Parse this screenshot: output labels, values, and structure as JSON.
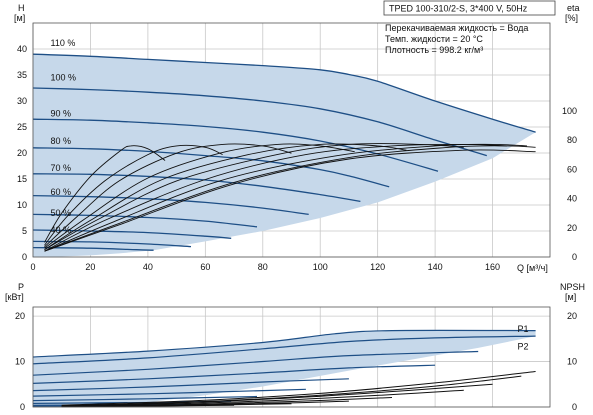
{
  "header": {
    "title": "TPED 100-310/2-S, 3*400 V, 50Hz",
    "info": [
      "Перекачиваемая жидкость = Вода",
      "Темп. жидкости = 20 °C",
      "Плотность = 998.2 кг/м³"
    ]
  },
  "colors": {
    "area": "#c6d8ea",
    "curve": "#1e4f86",
    "eta": "#111111",
    "grid": "#c8c8c8"
  },
  "chart_data": [
    {
      "type": "line",
      "name": "QH",
      "xlabel": "Q [м³/ч]",
      "ylabel_top": "H",
      "ylabel_unit": "[м]",
      "y2label_top": "eta",
      "y2label_unit": "[%]",
      "xlim": [
        0,
        180
      ],
      "ylim": [
        0,
        45
      ],
      "y2lim": [
        0,
        160
      ],
      "x_ticks": [
        0,
        20,
        40,
        60,
        80,
        100,
        120,
        140,
        160
      ],
      "y_ticks": [
        0,
        5,
        10,
        15,
        20,
        25,
        30,
        35,
        40
      ],
      "y2_ticks": [
        0,
        20,
        40,
        60,
        80,
        100
      ],
      "grid": true,
      "series": [
        {
          "name": "110 %",
          "label_pos": [
            4,
            41.2
          ],
          "x": [
            0,
            20,
            40,
            60,
            80,
            100,
            110,
            120,
            140,
            160,
            175
          ],
          "y": [
            39,
            38.6,
            38.0,
            37.4,
            36.8,
            36.0,
            35.1,
            33.8,
            30.0,
            26.5,
            24.0
          ]
        },
        {
          "name": "100 %",
          "label_pos": [
            4,
            34.5
          ],
          "x": [
            0,
            20,
            40,
            60,
            80,
            100,
            120,
            140,
            158
          ],
          "y": [
            32.5,
            32.2,
            31.7,
            31.0,
            30.0,
            28.5,
            26.0,
            22.5,
            19.5
          ]
        },
        {
          "name": "90 %",
          "label_pos": [
            4,
            27.6
          ],
          "x": [
            0,
            20,
            40,
            60,
            80,
            100,
            120,
            141
          ],
          "y": [
            26.5,
            26.3,
            25.8,
            25.1,
            24.0,
            22.3,
            19.8,
            16.5
          ]
        },
        {
          "name": "80 %",
          "label_pos": [
            4,
            22.3
          ],
          "x": [
            0,
            20,
            40,
            60,
            80,
            100,
            110,
            124
          ],
          "y": [
            21.0,
            20.8,
            20.3,
            19.5,
            18.5,
            16.8,
            15.6,
            13.5
          ]
        },
        {
          "name": "70 %",
          "label_pos": [
            4,
            17.1
          ],
          "x": [
            0,
            20,
            40,
            60,
            80,
            100,
            114
          ],
          "y": [
            16.0,
            15.9,
            15.5,
            14.8,
            13.6,
            12.0,
            10.7
          ]
        },
        {
          "name": "60 %",
          "label_pos": [
            4,
            12.5
          ],
          "x": [
            0,
            20,
            40,
            60,
            80,
            96
          ],
          "y": [
            11.8,
            11.6,
            11.2,
            10.5,
            9.4,
            8.2
          ]
        },
        {
          "name": "50 %",
          "label_pos": [
            4,
            8.5
          ],
          "x": [
            0,
            20,
            40,
            60,
            78
          ],
          "y": [
            8.2,
            8.0,
            7.6,
            6.9,
            5.8
          ]
        },
        {
          "name": "40 %",
          "label_pos": [
            4,
            5.2
          ],
          "x": [
            0,
            20,
            40,
            60,
            69
          ],
          "y": [
            5.2,
            5.0,
            4.7,
            4.0,
            3.6
          ]
        },
        {
          "name": "",
          "label_pos": null,
          "x": [
            0,
            20,
            40,
            55
          ],
          "y": [
            3.0,
            2.9,
            2.5,
            2.0
          ]
        },
        {
          "name": "",
          "label_pos": null,
          "x": [
            0,
            20,
            36,
            42
          ],
          "y": [
            1.8,
            1.7,
            1.4,
            1.3
          ]
        }
      ],
      "area_outline": {
        "x": [
          0,
          20,
          40,
          60,
          80,
          100,
          110,
          120,
          140,
          160,
          175,
          160,
          140,
          120,
          100,
          80,
          60,
          42,
          30,
          20,
          10,
          0
        ],
        "y": [
          39,
          38.6,
          38.0,
          37.4,
          36.8,
          36.0,
          35.1,
          33.8,
          30.0,
          26.5,
          24.0,
          19.0,
          14.5,
          10.5,
          7.5,
          5.0,
          3.0,
          1.3,
          0.7,
          0.3,
          0.1,
          0
        ]
      },
      "eta_series": [
        {
          "x": [
            4,
            10,
            20,
            30,
            34,
            40,
            46
          ],
          "y": [
            10,
            30,
            55,
            72,
            76,
            74,
            66
          ]
        },
        {
          "x": [
            4,
            12,
            25,
            40,
            50,
            60,
            66
          ],
          "y": [
            8,
            28,
            52,
            70,
            76,
            75,
            70
          ]
        },
        {
          "x": [
            4,
            15,
            30,
            50,
            66,
            80,
            90
          ],
          "y": [
            7,
            27,
            52,
            71,
            77,
            76,
            71
          ]
        },
        {
          "x": [
            4,
            18,
            40,
            65,
            85,
            100,
            112
          ],
          "y": [
            6,
            26,
            54,
            71,
            77,
            76,
            72
          ]
        },
        {
          "x": [
            4,
            20,
            45,
            75,
            100,
            120,
            130
          ],
          "y": [
            5,
            25,
            53,
            70,
            77,
            76,
            73
          ]
        },
        {
          "x": [
            4,
            22,
            50,
            85,
            110,
            135,
            150
          ],
          "y": [
            5,
            25,
            52,
            70,
            77,
            77,
            75
          ]
        },
        {
          "x": [
            4,
            25,
            60,
            95,
            125,
            150,
            165
          ],
          "y": [
            4,
            25,
            53,
            70,
            76,
            77,
            76
          ]
        },
        {
          "x": [
            4,
            28,
            65,
            105,
            140,
            160,
            172
          ],
          "y": [
            4,
            24,
            52,
            69,
            76,
            77,
            76
          ]
        },
        {
          "x": [
            4,
            30,
            70,
            110,
            145,
            165,
            175
          ],
          "y": [
            4,
            23,
            51,
            68,
            75,
            76,
            75
          ]
        },
        {
          "x": [
            4,
            30,
            70,
            110,
            150,
            175
          ],
          "y": [
            4,
            22,
            50,
            67,
            73,
            72
          ]
        }
      ]
    },
    {
      "type": "line",
      "name": "Power/NPSH",
      "ylabel_top": "P",
      "ylabel_unit": "[кВт]",
      "y2label_top": "NPSH",
      "y2label_unit": "[м]",
      "xlim": [
        0,
        180
      ],
      "ylim": [
        0,
        22
      ],
      "y2lim": [
        0,
        22
      ],
      "y_ticks": [
        0,
        10,
        20
      ],
      "y2_ticks": [
        0,
        10,
        20
      ],
      "grid": true,
      "labels": [
        {
          "text": "P1",
          "x": 168,
          "y": 17.2
        },
        {
          "text": "P2",
          "x": 168,
          "y": 13.3
        }
      ],
      "power_series": [
        {
          "x": [
            0,
            40,
            80,
            105,
            125,
            175
          ],
          "y": [
            11.0,
            12.3,
            14.2,
            16.1,
            16.8,
            16.8
          ]
        },
        {
          "x": [
            0,
            40,
            80,
            110,
            140,
            175
          ],
          "y": [
            9.5,
            10.8,
            12.8,
            14.4,
            15.2,
            15.6
          ]
        },
        {
          "x": [
            0,
            40,
            80,
            110,
            155
          ],
          "y": [
            7.0,
            8.3,
            10.0,
            11.3,
            12.2
          ]
        },
        {
          "x": [
            0,
            40,
            80,
            110,
            140
          ],
          "y": [
            5.2,
            6.2,
            7.5,
            8.6,
            9.2
          ]
        },
        {
          "x": [
            0,
            40,
            80,
            110
          ],
          "y": [
            3.6,
            4.4,
            5.5,
            6.2
          ]
        },
        {
          "x": [
            0,
            40,
            80,
            95
          ],
          "y": [
            2.4,
            2.9,
            3.6,
            3.9
          ]
        },
        {
          "x": [
            0,
            40,
            78
          ],
          "y": [
            1.4,
            1.8,
            2.3
          ]
        },
        {
          "x": [
            0,
            40,
            69
          ],
          "y": [
            0.8,
            1.0,
            1.3
          ]
        },
        {
          "x": [
            0,
            30,
            55
          ],
          "y": [
            0.4,
            0.5,
            0.7
          ]
        },
        {
          "x": [
            0,
            42
          ],
          "y": [
            0.2,
            0.3
          ]
        }
      ],
      "power_area": {
        "x": [
          0,
          40,
          80,
          105,
          125,
          175,
          175,
          155,
          110,
          80,
          60,
          42,
          20,
          0
        ],
        "y": [
          11.0,
          12.3,
          14.2,
          16.1,
          16.8,
          16.8,
          15.6,
          13.0,
          8.0,
          4.5,
          2.6,
          1.2,
          0.5,
          0.2
        ]
      },
      "npsh_series": [
        {
          "x": [
            10,
            60,
            100,
            140,
            175
          ],
          "y": [
            0.4,
            1.5,
            3.0,
            5.3,
            7.8
          ]
        },
        {
          "x": [
            10,
            60,
            100,
            140,
            170
          ],
          "y": [
            0.3,
            1.2,
            2.6,
            4.6,
            6.8
          ]
        },
        {
          "x": [
            10,
            50,
            90,
            130,
            160
          ],
          "y": [
            0.2,
            0.9,
            2.0,
            3.6,
            5.0
          ]
        },
        {
          "x": [
            10,
            50,
            90,
            130,
            150
          ],
          "y": [
            0.2,
            0.7,
            1.6,
            2.9,
            3.7
          ]
        },
        {
          "x": [
            10,
            50,
            90,
            125
          ],
          "y": [
            0.1,
            0.5,
            1.2,
            2.1
          ]
        },
        {
          "x": [
            10,
            50,
            90,
            110
          ],
          "y": [
            0.1,
            0.4,
            0.9,
            1.3
          ]
        },
        {
          "x": [
            10,
            50,
            90
          ],
          "y": [
            0.1,
            0.3,
            0.7
          ]
        },
        {
          "x": [
            10,
            40,
            70
          ],
          "y": [
            0.05,
            0.2,
            0.4
          ]
        }
      ]
    }
  ]
}
